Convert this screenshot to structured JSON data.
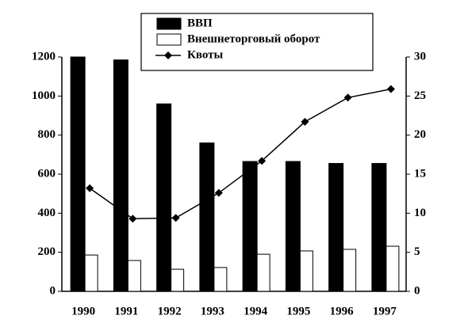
{
  "chart_data": {
    "type": "bar",
    "categories": [
      "1990",
      "1991",
      "1992",
      "1993",
      "1994",
      "1995",
      "1996",
      "1997"
    ],
    "series": [
      {
        "name": "ВВП",
        "color": "#000000",
        "values": [
          1200,
          1185,
          960,
          760,
          665,
          665,
          655,
          655
        ]
      },
      {
        "name": "Внешнеторговый оборот",
        "color": "#ffffff",
        "values": [
          186,
          158,
          113,
          122,
          190,
          207,
          215,
          231
        ]
      },
      {
        "name": "Квоты",
        "type": "line",
        "axis": "y2",
        "color": "#000000",
        "values": [
          13.2,
          9.3,
          9.4,
          12.6,
          16.7,
          21.7,
          24.8,
          25.9
        ]
      }
    ],
    "ylim": [
      0,
      1200
    ],
    "yticks": [
      0,
      200,
      400,
      600,
      800,
      1000,
      1200
    ],
    "y2lim": [
      0,
      30
    ],
    "y2ticks": [
      0,
      5,
      10,
      15,
      20,
      25,
      30
    ],
    "grid": false
  }
}
